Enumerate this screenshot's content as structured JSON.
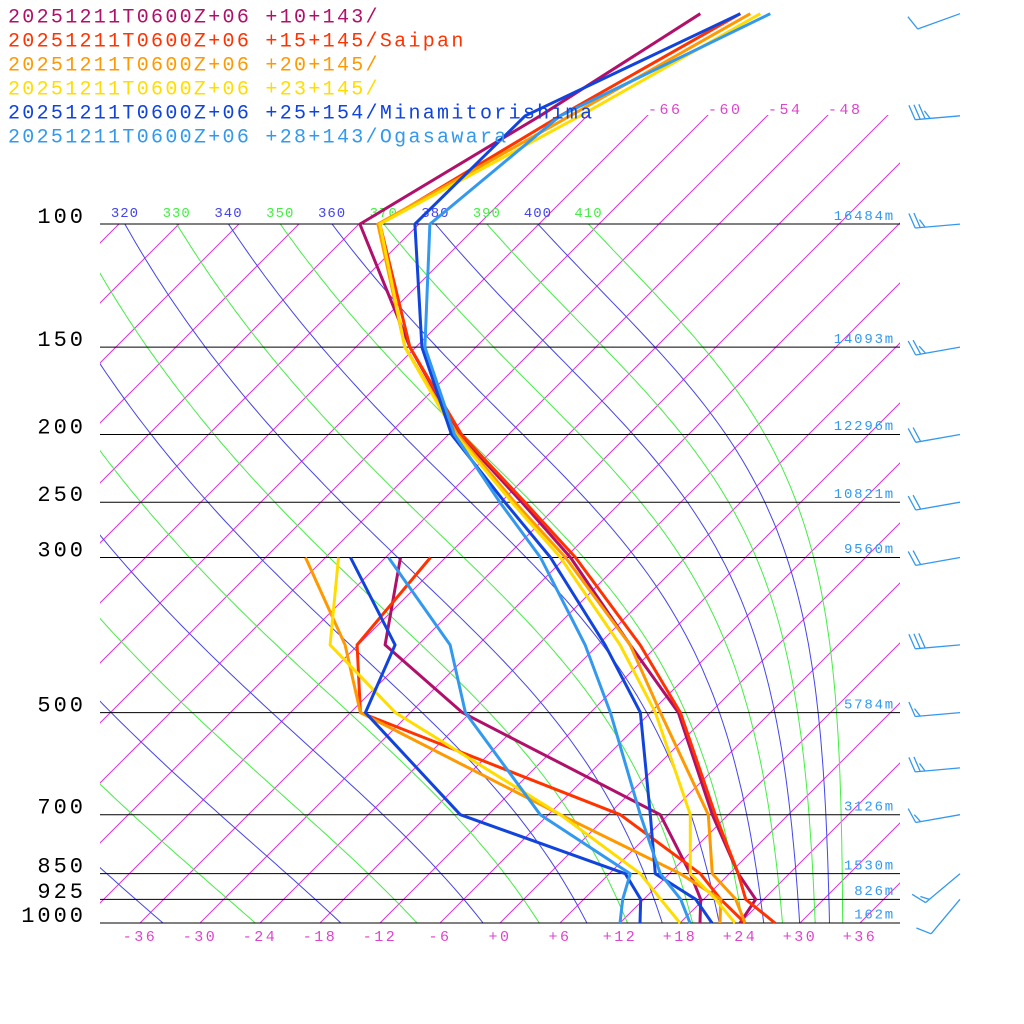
{
  "chart_data": {
    "type": "skewt",
    "xlim": [
      -40,
      40
    ],
    "ylim": [
      1000,
      47.8
    ],
    "xticks": [
      -36,
      -30,
      -24,
      -18,
      -12,
      -6,
      {
        "value": 0,
        "label": "+0"
      },
      {
        "value": 6,
        "label": "+6"
      },
      {
        "value": 12,
        "label": "+12"
      },
      {
        "value": 18,
        "label": "+18"
      },
      {
        "value": 24,
        "label": "+24"
      },
      {
        "value": 30,
        "label": "+30"
      },
      {
        "value": 36,
        "label": "+36"
      }
    ],
    "isotherm_top_labels": [
      -66,
      -60,
      -54,
      -48
    ],
    "yticks": [
      100,
      150,
      200,
      250,
      300,
      500,
      700,
      850,
      925,
      1000
    ],
    "height_labels": [
      "16484m",
      "14093m",
      "12296m",
      "10821m",
      "9560m",
      "5784m",
      "3126m",
      "1530m",
      "826m",
      "162m"
    ],
    "adiabat_labels": [
      320,
      330,
      340,
      350,
      360,
      370,
      380,
      390,
      400,
      410
    ],
    "levels": [
      1000,
      925,
      850,
      700,
      500,
      400,
      300,
      250,
      200,
      150,
      100,
      70,
      50
    ],
    "dewpoint_levels": [
      1000,
      925,
      850,
      700,
      500,
      400,
      300
    ],
    "series": [
      {
        "name": "20251211T0600Z+06 +10+143/",
        "color": "#b0106a",
        "temperature": [
          24,
          23.2,
          18.9,
          10.4,
          -3.2,
          -14.8,
          -29.5,
          -39.9,
          -52.9,
          -66.6,
          -83.9,
          -76.7,
          -70.9
        ],
        "dewpoint": [
          20,
          17.7,
          14.1,
          5.2,
          -24.8,
          -39.3,
          -46.5
        ]
      },
      {
        "name": "20251211T0600Z+06 +15+145/Saipan",
        "color": "#ff3300",
        "temperature": [
          27.5,
          22.2,
          18.9,
          10.7,
          -3,
          -13.8,
          -29,
          -39.6,
          -52.7,
          -66.6,
          -81.9,
          -74.7,
          -66.9
        ],
        "dewpoint": [
          24.5,
          19.7,
          15.1,
          1.2,
          -35,
          -42.1,
          -43.5
        ]
      },
      {
        "name": "20251211T0600Z+06 +20+145/",
        "color": "#ff9900",
        "temperature": [
          24.5,
          21.2,
          16.3,
          10,
          -5,
          -14.8,
          -30,
          -40.6,
          -53.1,
          -67.1,
          -82.1,
          -73.7,
          -65.9
        ],
        "dewpoint": [
          22,
          19.7,
          13.1,
          -4.8,
          -35,
          -43.3,
          -56
        ]
      },
      {
        "name": "20251211T0600Z+06 +23+145/",
        "color": "#ffdd00",
        "temperature": [
          23.5,
          19.2,
          14.1,
          8.2,
          -5.5,
          -15.8,
          -30.5,
          -40.9,
          -53.3,
          -67.1,
          -81.9,
          -72.7,
          -64.9
        ],
        "dewpoint": [
          18,
          13.7,
          9.1,
          -4.8,
          -31.5,
          -44.8,
          -52.7
        ]
      },
      {
        "name": "20251211T0600Z+06 +25+154/Minamitorishima",
        "color": "#1144dd",
        "temperature": [
          21.2,
          17.2,
          10.6,
          4.2,
          -7,
          -17.3,
          -31.5,
          -41.6,
          -53.7,
          -65.4,
          -78.4,
          -78.2,
          -66.9
        ],
        "dewpoint": [
          14,
          11.7,
          7.6,
          -14.8,
          -34.5,
          -38.3,
          -51.5
        ]
      },
      {
        "name": "20251211T0600Z+06 +28+143/Ogasawara",
        "color": "#3399ee",
        "temperature": [
          19,
          15.7,
          11.1,
          3.2,
          -10,
          -19.3,
          -32.5,
          -42.1,
          -53.4,
          -65.1,
          -76.9,
          -74.7,
          -63.9
        ],
        "dewpoint": [
          12,
          9.9,
          8.1,
          -6.8,
          -24.5,
          -32.8,
          -47.7
        ]
      }
    ],
    "winds": {
      "color": "#3399ee",
      "pressure": [
        50,
        70,
        100,
        150,
        200,
        250,
        300,
        400,
        500,
        600,
        700,
        850,
        925
      ],
      "speed": [
        10,
        35,
        25,
        25,
        20,
        20,
        20,
        30,
        15,
        25,
        15,
        15,
        10
      ],
      "direction": [
        250,
        265,
        265,
        260,
        260,
        260,
        260,
        265,
        265,
        265,
        260,
        230,
        220
      ]
    }
  }
}
